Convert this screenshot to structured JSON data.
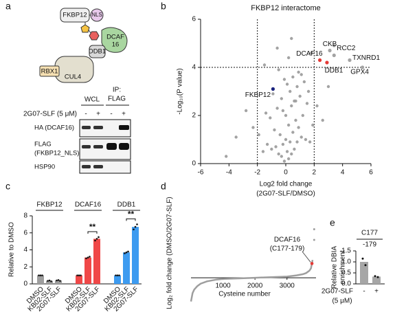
{
  "panel_labels": [
    "a",
    "b",
    "c",
    "d",
    "e"
  ],
  "diagram": {
    "nodes": [
      [
        "FKBP12"
      ],
      [
        "NLS"
      ],
      [
        "DCAF",
        "16"
      ],
      [
        "DDB1"
      ],
      [
        "RBX1"
      ],
      [
        "CUL4"
      ]
    ]
  },
  "blot": {
    "ip": [
      "IP:",
      "FLAG"
    ],
    "input": "WCL",
    "treatment": "2G07-SLF (5 μM)",
    "lanes": [
      "-",
      "+",
      "-",
      "+"
    ],
    "rows": [
      [
        "HA (DCAF16)"
      ],
      [
        "FLAG",
        "(FKBP12_NLS)"
      ],
      [
        "HSP90"
      ]
    ]
  },
  "chart_data": [
    {
      "type": "scatter",
      "title": "FKBP12 interactome",
      "xlabel": [
        "Log2 fold change",
        "(2G07-SLF/DMSO)"
      ],
      "ylabel": "-Log₁₀(P value)",
      "xlim": [
        -6,
        6
      ],
      "ylim": [
        0,
        6
      ],
      "xticks": [
        -6,
        -4,
        -2,
        0,
        2,
        4,
        6
      ],
      "yticks": [
        0,
        2,
        4,
        6
      ],
      "threshold_lines": {
        "x": [
          -2,
          2
        ],
        "y": [
          4
        ]
      },
      "points": {
        "color": "#a3a3a3",
        "x": [
          -0.1,
          0.2,
          -0.3,
          0.4,
          0.1,
          -0.5,
          0.6,
          -0.2,
          0.3,
          0.0,
          -0.7,
          0.8,
          -1.0,
          1.1,
          0.5,
          -0.4,
          0.9,
          -1.3,
          1.4,
          0.2,
          -0.8,
          0.7,
          -1.6,
          1.7,
          0.0,
          -0.2,
          0.4,
          1.2,
          -1.1,
          0.6,
          -0.6,
          1.0,
          0.3,
          -0.3,
          1.5,
          -1.9,
          1.9,
          0.1,
          -0.1,
          0.8,
          -0.9,
          0.5,
          1.3,
          -1.4,
          2.2,
          -2.3,
          0.9,
          1.6,
          -0.5,
          0.2,
          -3.5,
          3.0,
          -4.2,
          2.6,
          1.8,
          -1.5,
          0.4,
          -0.6,
          1.1,
          0.7,
          -2.8,
          3.4
        ],
        "y": [
          0.1,
          0.2,
          0.3,
          0.4,
          0.5,
          0.4,
          0.6,
          0.8,
          0.9,
          1.0,
          0.7,
          0.9,
          0.6,
          1.1,
          1.3,
          1.2,
          1.5,
          0.8,
          1.0,
          1.6,
          1.4,
          1.8,
          0.5,
          0.9,
          2.0,
          2.2,
          2.4,
          2.0,
          1.9,
          2.6,
          2.3,
          2.8,
          3.0,
          2.7,
          2.5,
          1.2,
          1.6,
          3.3,
          3.5,
          3.2,
          2.9,
          3.6,
          3.4,
          2.1,
          2.4,
          1.5,
          3.8,
          3.0,
          3.9,
          4.4,
          1.1,
          3.2,
          0.3,
          1.8,
          4.6,
          4.1,
          5.2,
          4.8,
          3.7,
          2.6,
          2.2,
          4.9
        ]
      },
      "labeled_points": [
        {
          "label": "CKB",
          "x": 3.1,
          "y": 4.7,
          "color": "#a3a3a3"
        },
        {
          "label": "RCC2",
          "x": 3.4,
          "y": 4.5,
          "color": "#a3a3a3"
        },
        {
          "label": "TXNRD1",
          "x": 4.5,
          "y": 4.3,
          "color": "#a3a3a3"
        },
        {
          "label": "GPX4",
          "x": 5.4,
          "y": 4.0,
          "color": "#a3a3a3"
        },
        {
          "label": "DCAF16",
          "x": 2.4,
          "y": 4.3,
          "color": "#e53935"
        },
        {
          "label": "DDB1",
          "x": 2.9,
          "y": 4.2,
          "color": "#e53935"
        },
        {
          "label": "FKBP12",
          "x": -0.9,
          "y": 3.1,
          "color": "#1a237e"
        }
      ]
    },
    {
      "type": "bar",
      "ylabel": "Relative to DMSO",
      "ylim": [
        0,
        8
      ],
      "yticks": [
        0,
        2,
        4,
        6,
        8
      ],
      "groups": [
        {
          "name": "FKBP12",
          "color": "#9e9e9e",
          "labels": [
            "DMSO",
            "KB02-SLF",
            "2G07-SLF"
          ],
          "values": [
            1,
            0.35,
            0.4
          ],
          "replicates": [
            [
              1,
              1,
              1
            ],
            [
              0.35,
              0.4,
              0.3
            ],
            [
              0.4,
              0.45,
              0.35
            ]
          ]
        },
        {
          "name": "DCAF16",
          "color": "#f04848",
          "labels": [
            "DMSO",
            "KB02-SLF",
            "2G07-SLF"
          ],
          "values": [
            1,
            3.1,
            5.3
          ],
          "replicates": [
            [
              1,
              1,
              1
            ],
            [
              3.0,
              3.1,
              3.2
            ],
            [
              5.1,
              5.3,
              5.5
            ]
          ],
          "significance": "**"
        },
        {
          "name": "DDB1",
          "color": "#3d9bf0",
          "labels": [
            "DMSO",
            "KB02-SLF",
            "2G07-SLF"
          ],
          "values": [
            1,
            3.7,
            6.7
          ],
          "replicates": [
            [
              1,
              1,
              1
            ],
            [
              3.6,
              3.7,
              3.8
            ],
            [
              6.4,
              6.7,
              7.0
            ]
          ],
          "significance": "**"
        }
      ]
    },
    {
      "type": "line",
      "xlabel": "Cysteine number",
      "ylabel": "Log₂ fold change (DMSO/2G07-SLF)",
      "color": "#9e9e9e",
      "xlim": [
        0,
        3950
      ],
      "ylim": [
        -2.2,
        4.3
      ],
      "xticks": [
        1000,
        2000,
        3000
      ],
      "x": [
        1,
        50,
        100,
        200,
        300,
        500,
        800,
        1000,
        1500,
        2000,
        2500,
        3000,
        3300,
        3500,
        3600,
        3700,
        3750,
        3800
      ],
      "y": [
        -2.0,
        -1.3,
        -1.0,
        -0.7,
        -0.5,
        -0.3,
        -0.15,
        -0.1,
        -0.05,
        0,
        0.05,
        0.1,
        0.2,
        0.3,
        0.4,
        0.6,
        0.8,
        1.5
      ],
      "outliers": {
        "x": [
          3850,
          3850
        ],
        "y": [
          4.1,
          3.2
        ]
      },
      "highlight": {
        "label": [
          "DCAF16",
          "(C177-179)"
        ],
        "x": 3780,
        "y": 1.2,
        "color": "#e53935"
      }
    },
    {
      "type": "bar",
      "title": [
        "C177",
        "-179"
      ],
      "ylabel": [
        "Relative DBIA",
        "enrichment"
      ],
      "color": "#a6a6a6",
      "ylim": [
        0,
        1.5
      ],
      "yticks": [
        {
          "value": 0,
          "label": "0.0"
        },
        {
          "value": 0.5,
          "label": "0.5"
        },
        {
          "value": 1,
          "label": "1.0"
        },
        {
          "value": 1.5,
          "label": "1.5"
        }
      ],
      "categories": [
        "-",
        "+"
      ],
      "values": [
        1.0,
        0.33
      ],
      "replicates": [
        [
          1.15,
          0.85
        ],
        [
          0.35,
          0.31
        ]
      ],
      "treatment": [
        "2G07-SLF",
        "(5 μM)"
      ]
    }
  ]
}
